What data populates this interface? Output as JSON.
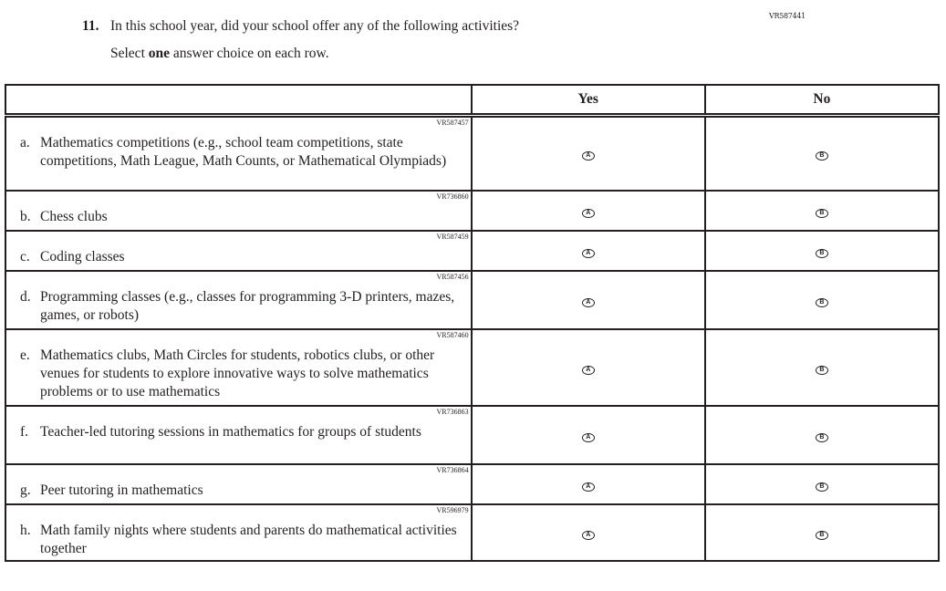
{
  "question": {
    "id": "VR587441",
    "number": "11.",
    "text": "In this school year, did your school offer any of the following activities?",
    "instruction_pre": "Select ",
    "instruction_bold": "one",
    "instruction_post": " answer choice on each row."
  },
  "columns": [
    "",
    "Yes",
    "No"
  ],
  "options": {
    "yes": "A",
    "no": "B"
  },
  "rows": [
    {
      "letter": "a.",
      "code": "VR587457",
      "text": "Mathematics competitions (e.g., school team competitions, state competitions, Math League, Math Counts, or Mathematical Olympiads)",
      "h": 84
    },
    {
      "letter": "b.",
      "code": "VR736860",
      "text": "Chess clubs",
      "h": 46
    },
    {
      "letter": "c.",
      "code": "VR587459",
      "text": "Coding classes",
      "h": 46
    },
    {
      "letter": "d.",
      "code": "VR587456",
      "text": "Programming classes (e.g., classes for programming 3-D printers, mazes, games, or robots)",
      "h": 66
    },
    {
      "letter": "e.",
      "code": "VR587460",
      "text": "Mathematics clubs, Math Circles for students, robotics clubs, or other venues for students to explore innovative ways to solve mathematics problems or to use mathematics",
      "h": 86
    },
    {
      "letter": "f.",
      "code": "VR736863",
      "text": "Teacher-led tutoring sessions in mathematics for groups of students",
      "h": 66
    },
    {
      "letter": "g.",
      "code": "VR736864",
      "text": "Peer tutoring in mathematics",
      "h": 46
    },
    {
      "letter": "h.",
      "code": "VR596979",
      "text": "Math family nights where students and parents do mathematical activities together",
      "h": 64
    }
  ]
}
